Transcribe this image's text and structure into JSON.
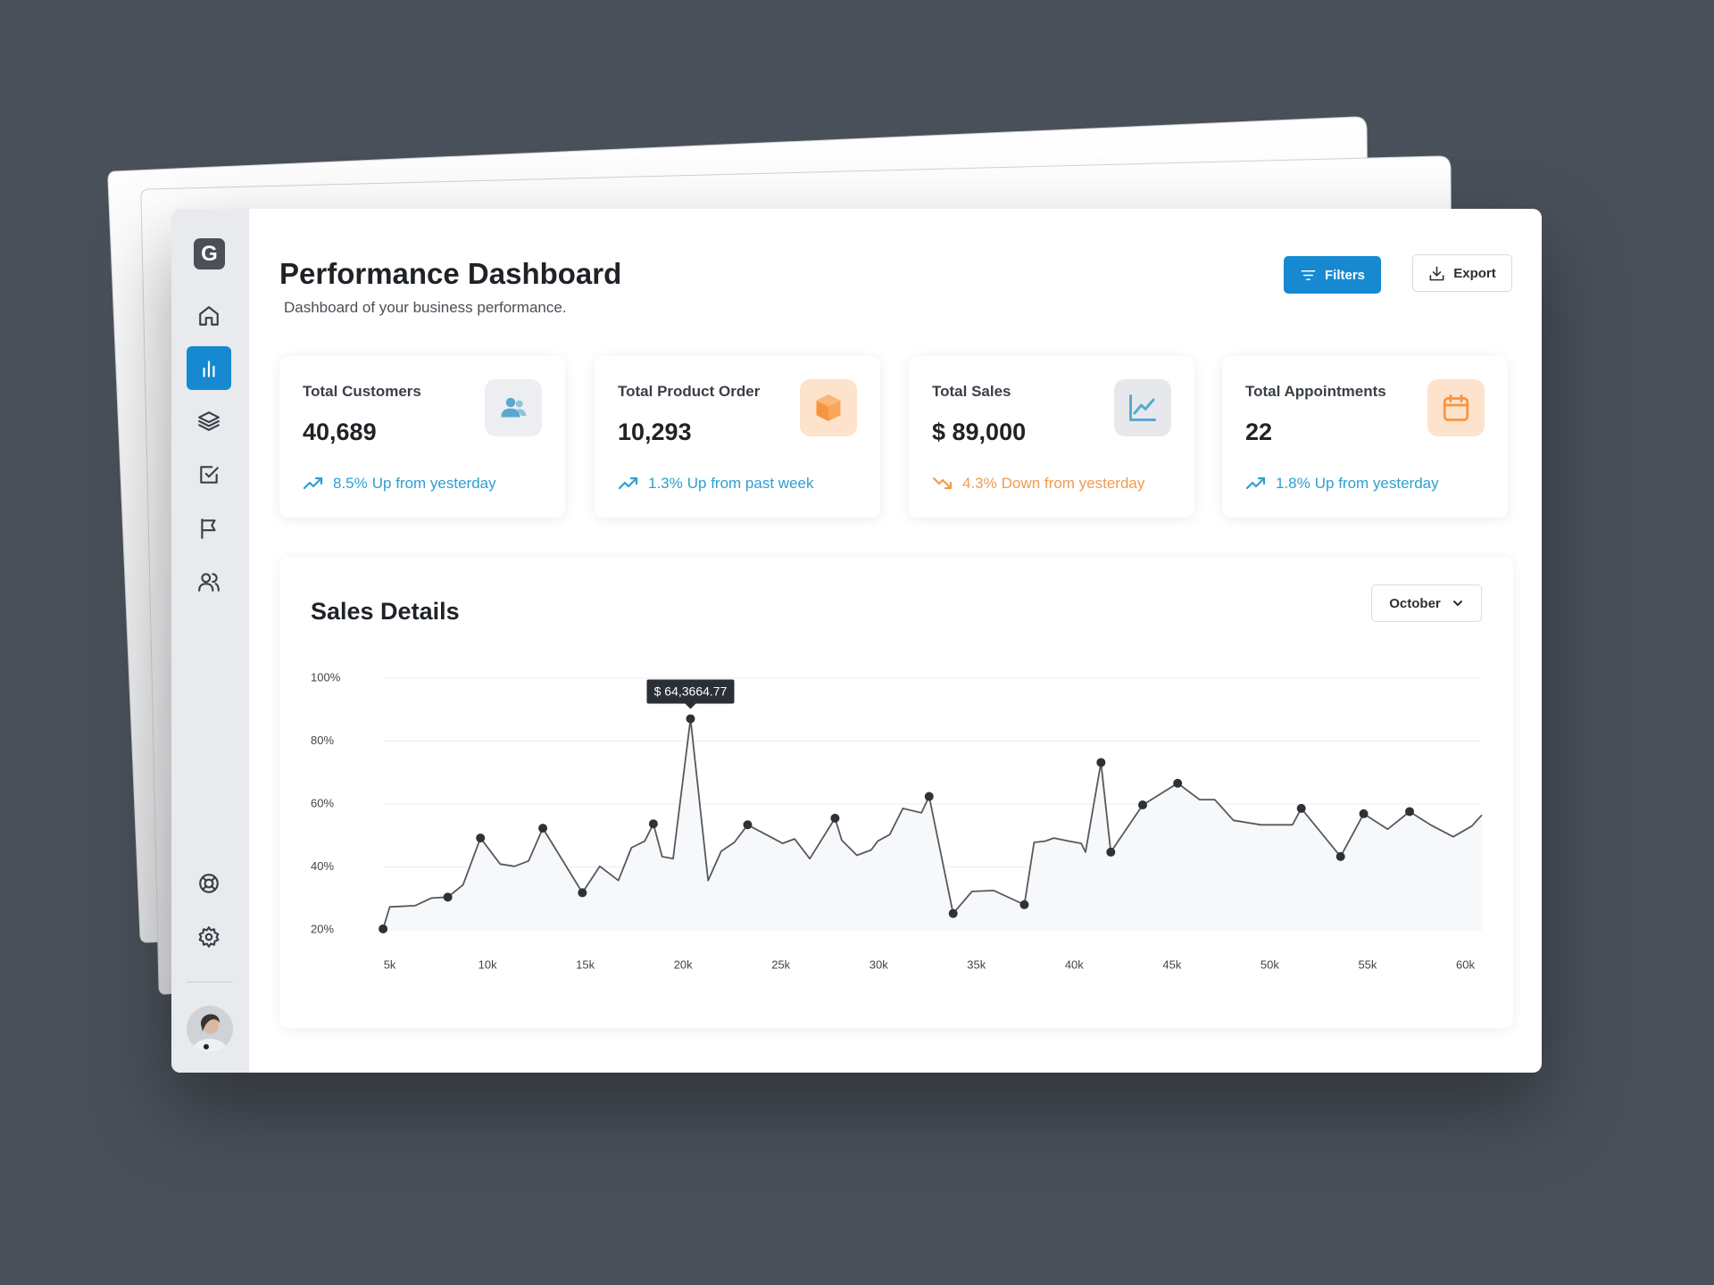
{
  "logo": "G",
  "header": {
    "title": "Performance Dashboard",
    "subtitle": "Dashboard of your business performance."
  },
  "buttons": {
    "filters": "Filters",
    "export": "Export"
  },
  "stats": [
    {
      "title": "Total Customers",
      "value": "40,689",
      "change": "8.5%",
      "note": "Up from yesterday",
      "trend": "up"
    },
    {
      "title": "Total Product Order",
      "value": "10,293",
      "change": "1.3%",
      "note": "Up from past week",
      "trend": "up"
    },
    {
      "title": "Total Sales",
      "value": "$ 89,000",
      "change": "4.3%",
      "note": "Down from yesterday",
      "trend": "down"
    },
    {
      "title": "Total Appointments",
      "value": "22",
      "change": "1.8%",
      "note": "Up from yesterday",
      "trend": "up"
    }
  ],
  "chart_data": {
    "type": "line",
    "title": "Sales Details",
    "period": "October",
    "x": [
      4660,
      5000,
      6290,
      7130,
      7970,
      8750,
      9640,
      10650,
      11380,
      12100,
      12830,
      14850,
      15740,
      16690,
      17360,
      18040,
      18480,
      18930,
      19490,
      20380,
      21280,
      21950,
      22620,
      23300,
      25090,
      25700,
      26480,
      27770,
      28110,
      28890,
      29620,
      29950,
      30570,
      31240,
      32190,
      32580,
      33810,
      34770,
      35880,
      37450,
      37950,
      38510,
      38960,
      39740,
      40360,
      40580,
      41370,
      41870,
      43500,
      45290,
      46410,
      47190,
      48140,
      49540,
      51160,
      51610,
      53620,
      54800,
      56030,
      57150,
      58210,
      59380,
      60330,
      60840
    ],
    "values": [
      20.3,
      27.3,
      27.7,
      30.1,
      30.4,
      34.3,
      49.2,
      40.9,
      40.2,
      41.9,
      52.3,
      31.8,
      40.2,
      35.7,
      46.1,
      48.2,
      53.7,
      43.3,
      42.6,
      87.1,
      35.7,
      45.0,
      47.8,
      53.4,
      47.5,
      48.9,
      42.6,
      55.5,
      48.5,
      43.7,
      45.4,
      48.2,
      50.3,
      58.6,
      57.2,
      62.4,
      25.2,
      32.2,
      32.5,
      28.0,
      47.8,
      48.2,
      49.2,
      48.2,
      47.5,
      44.7,
      73.2,
      44.7,
      59.7,
      66.6,
      61.4,
      61.4,
      54.8,
      53.4,
      53.4,
      58.6,
      43.3,
      56.9,
      52.0,
      57.6,
      53.4,
      49.6,
      53.0,
      56.5
    ],
    "markers": [
      true,
      false,
      false,
      false,
      true,
      false,
      true,
      false,
      false,
      false,
      true,
      true,
      false,
      false,
      false,
      false,
      true,
      false,
      false,
      true,
      false,
      false,
      false,
      true,
      false,
      false,
      false,
      true,
      false,
      false,
      false,
      false,
      false,
      false,
      false,
      true,
      true,
      false,
      false,
      true,
      false,
      false,
      false,
      false,
      false,
      false,
      true,
      true,
      true,
      true,
      false,
      false,
      false,
      false,
      false,
      true,
      true,
      true,
      false,
      true,
      false,
      false,
      false,
      false
    ],
    "color": "#55595f",
    "marker_color": "#2e3237",
    "fill": "#f7f8f9",
    "xlim": [
      4700,
      60800
    ],
    "ylim": [
      20,
      100
    ],
    "xticks": [
      {
        "value": 5000,
        "label": "5k"
      },
      {
        "value": 10000,
        "label": "10k"
      },
      {
        "value": 15000,
        "label": "15k"
      },
      {
        "value": 20000,
        "label": "20k"
      },
      {
        "value": 25000,
        "label": "25k"
      },
      {
        "value": 30000,
        "label": "30k"
      },
      {
        "value": 35000,
        "label": "35k"
      },
      {
        "value": 40000,
        "label": "40k"
      },
      {
        "value": 45000,
        "label": "45k"
      },
      {
        "value": 50000,
        "label": "50k"
      },
      {
        "value": 55000,
        "label": "55k"
      },
      {
        "value": 60000,
        "label": "60k"
      }
    ],
    "yticks": [
      {
        "value": 20,
        "label": "20%"
      },
      {
        "value": 40,
        "label": "40%"
      },
      {
        "value": 60,
        "label": "60%"
      },
      {
        "value": 80,
        "label": "80%"
      },
      {
        "value": 100,
        "label": "100%"
      }
    ],
    "grid": true,
    "annotation": {
      "text": "$ 64,3664.77",
      "x": 20380,
      "y": 87.1
    }
  }
}
